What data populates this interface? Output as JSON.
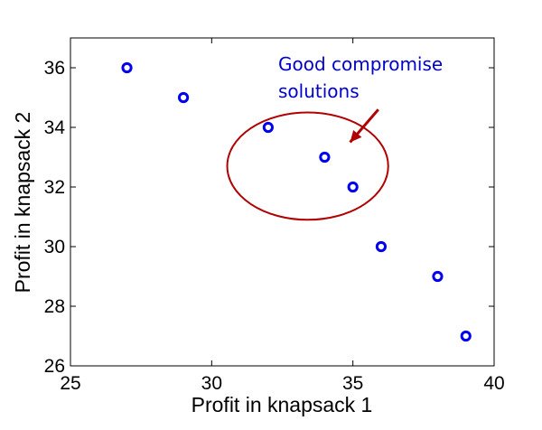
{
  "chart_data": {
    "type": "scatter",
    "x": [
      27,
      29,
      32,
      34,
      35,
      36,
      38,
      39
    ],
    "y": [
      36,
      35,
      34,
      33,
      32,
      30,
      29,
      27
    ],
    "xlabel": "Profit in knapsack 1",
    "ylabel": "Profit in knapsack 2",
    "xlim": [
      25,
      40
    ],
    "ylim": [
      26,
      37
    ],
    "xticks": [
      25,
      30,
      35,
      40
    ],
    "yticks": [
      26,
      28,
      30,
      32,
      34,
      36
    ],
    "xtick_labels": [
      "25",
      "30",
      "35",
      "40"
    ],
    "ytick_labels": [
      "26",
      "28",
      "30",
      "32",
      "34",
      "36"
    ],
    "grid": false,
    "legend": "none",
    "marker_color": "#0000ee",
    "annotation": {
      "text_lines": [
        "Good compromise",
        "solutions"
      ],
      "text_color": "#0000cc",
      "shape_color": "#b00000",
      "ellipse": {
        "cx": 33.4,
        "cy": 32.7,
        "rx": 2.85,
        "ry": 1.8
      },
      "arrow": {
        "from": [
          35.9,
          34.6
        ],
        "to": [
          34.9,
          33.5
        ]
      }
    }
  }
}
